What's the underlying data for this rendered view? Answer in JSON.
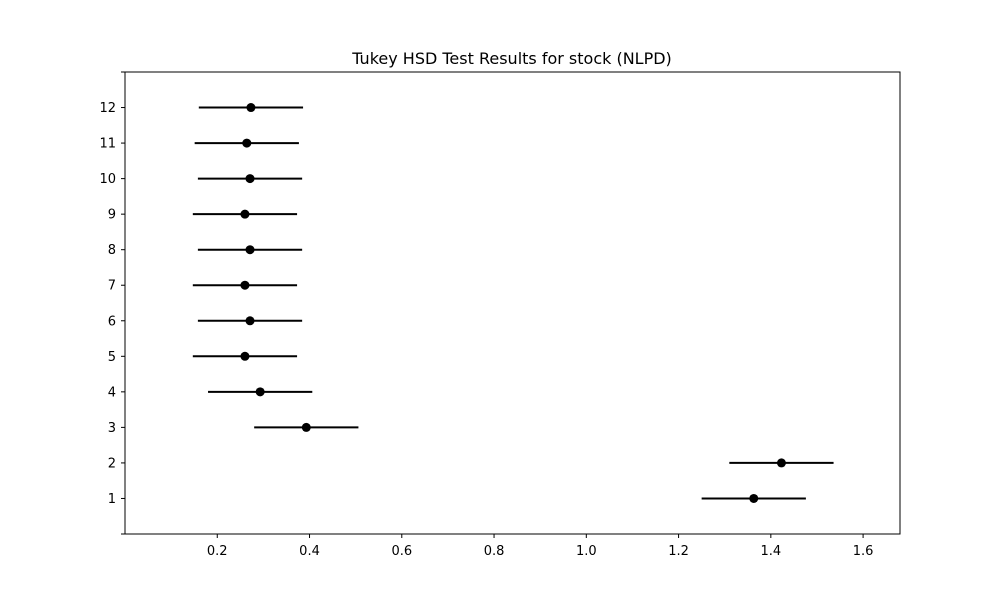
{
  "chart_data": {
    "type": "scatter",
    "title": "Tukey HSD Test Results for stock (NLPD)",
    "xlabel": "",
    "ylabel": "",
    "xlim": [
      0.0,
      1.68
    ],
    "ylim": [
      0,
      13
    ],
    "grid": false,
    "legend": "none",
    "x_ticks": [
      0.2,
      0.4,
      0.6,
      0.8,
      1.0,
      1.2,
      1.4,
      1.6
    ],
    "x_tick_labels": [
      "0.2",
      "0.4",
      "0.6",
      "0.8",
      "1.0",
      "1.2",
      "1.4",
      "1.6"
    ],
    "categories": [
      "1",
      "2",
      "3",
      "4",
      "5",
      "6",
      "7",
      "8",
      "9",
      "10",
      "11",
      "12"
    ],
    "means": [
      1.363,
      1.423,
      0.393,
      0.293,
      0.26,
      0.271,
      0.26,
      0.271,
      0.26,
      0.271,
      0.264,
      0.273
    ],
    "ci_half_width": 0.113,
    "colors": {
      "line": "#000000",
      "marker": "#000000"
    }
  }
}
